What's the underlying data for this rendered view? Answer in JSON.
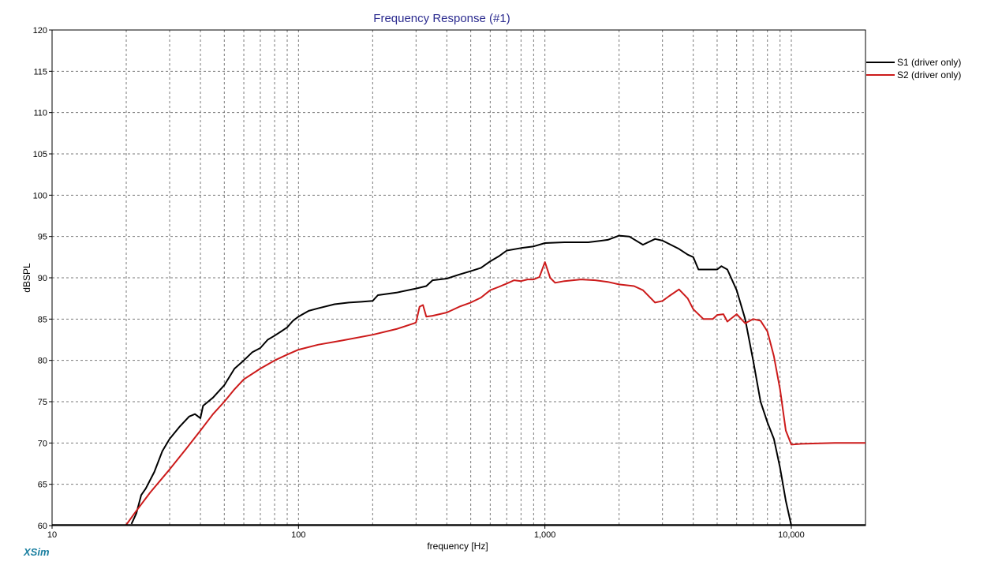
{
  "brand": "XSim",
  "colors": {
    "title": "#2b2b8f",
    "brand": "#1a7fa0",
    "grid": "#7a7a7a",
    "axis": "#000000"
  },
  "chart_data": {
    "type": "line",
    "title": "Frequency Response (#1)",
    "xlabel": "frequency [Hz]",
    "ylabel": "dBSPL",
    "xscale": "log",
    "xlim": [
      10,
      20000
    ],
    "ylim": [
      60,
      120
    ],
    "x_tick_labels": [
      {
        "value": 10,
        "label": "10"
      },
      {
        "value": 100,
        "label": "100"
      },
      {
        "value": 1000,
        "label": "1,000"
      },
      {
        "value": 10000,
        "label": "10,000"
      }
    ],
    "y_ticks": [
      60,
      65,
      70,
      75,
      80,
      85,
      90,
      95,
      100,
      105,
      110,
      115,
      120
    ],
    "grid": true,
    "legend_position": "right-top",
    "series": [
      {
        "name": "S1 (driver only)",
        "color": "#000000",
        "points": [
          [
            21,
            60.2
          ],
          [
            22,
            61.5
          ],
          [
            23,
            63.7
          ],
          [
            24,
            64.5
          ],
          [
            26,
            66.5
          ],
          [
            28,
            69.0
          ],
          [
            30,
            70.5
          ],
          [
            33,
            72.0
          ],
          [
            36,
            73.2
          ],
          [
            38,
            73.5
          ],
          [
            40,
            73.0
          ],
          [
            41,
            74.5
          ],
          [
            45,
            75.5
          ],
          [
            50,
            77.0
          ],
          [
            55,
            79.0
          ],
          [
            60,
            80.0
          ],
          [
            65,
            81.0
          ],
          [
            70,
            81.5
          ],
          [
            75,
            82.5
          ],
          [
            80,
            83.0
          ],
          [
            85,
            83.5
          ],
          [
            90,
            84.0
          ],
          [
            95,
            84.8
          ],
          [
            100,
            85.3
          ],
          [
            110,
            86.0
          ],
          [
            120,
            86.3
          ],
          [
            140,
            86.8
          ],
          [
            160,
            87.0
          ],
          [
            180,
            87.1
          ],
          [
            200,
            87.2
          ],
          [
            210,
            87.9
          ],
          [
            250,
            88.2
          ],
          [
            300,
            88.7
          ],
          [
            330,
            89.0
          ],
          [
            350,
            89.7
          ],
          [
            400,
            89.9
          ],
          [
            450,
            90.4
          ],
          [
            500,
            90.8
          ],
          [
            550,
            91.2
          ],
          [
            600,
            92.0
          ],
          [
            650,
            92.6
          ],
          [
            700,
            93.3
          ],
          [
            800,
            93.6
          ],
          [
            900,
            93.8
          ],
          [
            1000,
            94.2
          ],
          [
            1200,
            94.3
          ],
          [
            1500,
            94.3
          ],
          [
            1800,
            94.6
          ],
          [
            2000,
            95.1
          ],
          [
            2200,
            95.0
          ],
          [
            2500,
            94.0
          ],
          [
            2800,
            94.7
          ],
          [
            3000,
            94.5
          ],
          [
            3500,
            93.5
          ],
          [
            3800,
            92.8
          ],
          [
            4000,
            92.5
          ],
          [
            4200,
            91.0
          ],
          [
            4500,
            91.0
          ],
          [
            5000,
            91.0
          ],
          [
            5200,
            91.4
          ],
          [
            5500,
            91.0
          ],
          [
            6000,
            88.5
          ],
          [
            6500,
            85.0
          ],
          [
            7000,
            80.0
          ],
          [
            7500,
            75.0
          ],
          [
            8000,
            72.5
          ],
          [
            8500,
            70.5
          ],
          [
            9000,
            67.0
          ],
          [
            9500,
            63.0
          ],
          [
            10000,
            60.0
          ]
        ]
      },
      {
        "name": "S2 (driver only)",
        "color": "#cc1a1a",
        "points": [
          [
            20,
            60.1
          ],
          [
            22,
            61.8
          ],
          [
            25,
            64.0
          ],
          [
            30,
            66.8
          ],
          [
            35,
            69.3
          ],
          [
            40,
            71.5
          ],
          [
            45,
            73.5
          ],
          [
            50,
            75.0
          ],
          [
            55,
            76.5
          ],
          [
            60,
            77.7
          ],
          [
            70,
            79.0
          ],
          [
            80,
            80.0
          ],
          [
            90,
            80.7
          ],
          [
            100,
            81.3
          ],
          [
            120,
            81.9
          ],
          [
            150,
            82.4
          ],
          [
            200,
            83.1
          ],
          [
            250,
            83.8
          ],
          [
            295,
            84.5
          ],
          [
            300,
            84.6
          ],
          [
            310,
            86.5
          ],
          [
            320,
            86.7
          ],
          [
            330,
            85.3
          ],
          [
            350,
            85.4
          ],
          [
            400,
            85.8
          ],
          [
            450,
            86.5
          ],
          [
            500,
            87.0
          ],
          [
            550,
            87.6
          ],
          [
            600,
            88.5
          ],
          [
            650,
            88.9
          ],
          [
            700,
            89.3
          ],
          [
            750,
            89.7
          ],
          [
            800,
            89.6
          ],
          [
            850,
            89.8
          ],
          [
            900,
            89.8
          ],
          [
            950,
            90.1
          ],
          [
            1000,
            91.9
          ],
          [
            1050,
            90.0
          ],
          [
            1100,
            89.4
          ],
          [
            1200,
            89.6
          ],
          [
            1400,
            89.8
          ],
          [
            1600,
            89.7
          ],
          [
            1800,
            89.5
          ],
          [
            2000,
            89.2
          ],
          [
            2300,
            89.0
          ],
          [
            2500,
            88.5
          ],
          [
            2800,
            87.0
          ],
          [
            3000,
            87.2
          ],
          [
            3200,
            87.8
          ],
          [
            3500,
            88.6
          ],
          [
            3800,
            87.5
          ],
          [
            4000,
            86.2
          ],
          [
            4400,
            85.0
          ],
          [
            4800,
            85.0
          ],
          [
            5000,
            85.5
          ],
          [
            5300,
            85.6
          ],
          [
            5500,
            84.7
          ],
          [
            6000,
            85.6
          ],
          [
            6500,
            84.5
          ],
          [
            7000,
            85.0
          ],
          [
            7500,
            84.8
          ],
          [
            8000,
            83.5
          ],
          [
            8500,
            80.5
          ],
          [
            9000,
            76.5
          ],
          [
            9500,
            71.5
          ],
          [
            10000,
            69.8
          ],
          [
            11000,
            69.9
          ],
          [
            15000,
            70.0
          ],
          [
            20000,
            70.0
          ]
        ]
      }
    ]
  }
}
